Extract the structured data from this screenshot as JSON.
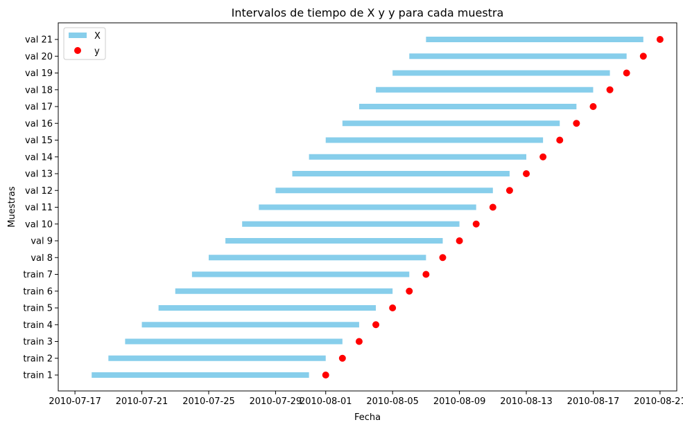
{
  "chart_data": {
    "type": "range-bar",
    "title": "Intervalos de tiempo de X y y para cada muestra",
    "xlabel": "Fecha",
    "ylabel": "Muestras",
    "x_ticks": [
      "2010-07-17",
      "2010-07-21",
      "2010-07-25",
      "2010-07-29",
      "2010-08-01",
      "2010-08-05",
      "2010-08-09",
      "2010-08-13",
      "2010-08-17",
      "2010-08-21"
    ],
    "x_range": [
      "2010-07-16",
      "2010-08-22"
    ],
    "legend_position": "top-left",
    "categories": [
      "train 1",
      "train 2",
      "train 3",
      "train 4",
      "train 5",
      "train 6",
      "train 7",
      "val 8",
      "val 9",
      "val 10",
      "val 11",
      "val 12",
      "val 13",
      "val 14",
      "val 15",
      "val 16",
      "val 17",
      "val 18",
      "val 19",
      "val 20",
      "val 21"
    ],
    "series": [
      {
        "name": "X",
        "kind": "interval",
        "color": "#87ceeb",
        "intervals": [
          [
            "2010-07-18",
            "2010-07-31"
          ],
          [
            "2010-07-19",
            "2010-08-01"
          ],
          [
            "2010-07-20",
            "2010-08-02"
          ],
          [
            "2010-07-21",
            "2010-08-03"
          ],
          [
            "2010-07-22",
            "2010-08-04"
          ],
          [
            "2010-07-23",
            "2010-08-05"
          ],
          [
            "2010-07-24",
            "2010-08-06"
          ],
          [
            "2010-07-25",
            "2010-08-07"
          ],
          [
            "2010-07-26",
            "2010-08-08"
          ],
          [
            "2010-07-27",
            "2010-08-09"
          ],
          [
            "2010-07-28",
            "2010-08-10"
          ],
          [
            "2010-07-29",
            "2010-08-11"
          ],
          [
            "2010-07-30",
            "2010-08-12"
          ],
          [
            "2010-07-31",
            "2010-08-13"
          ],
          [
            "2010-08-01",
            "2010-08-14"
          ],
          [
            "2010-08-02",
            "2010-08-15"
          ],
          [
            "2010-08-03",
            "2010-08-16"
          ],
          [
            "2010-08-04",
            "2010-08-17"
          ],
          [
            "2010-08-05",
            "2010-08-18"
          ],
          [
            "2010-08-06",
            "2010-08-19"
          ],
          [
            "2010-08-07",
            "2010-08-20"
          ]
        ]
      },
      {
        "name": "y",
        "kind": "point",
        "color": "#ff0000",
        "dates": [
          "2010-08-01",
          "2010-08-02",
          "2010-08-03",
          "2010-08-04",
          "2010-08-05",
          "2010-08-06",
          "2010-08-07",
          "2010-08-08",
          "2010-08-09",
          "2010-08-10",
          "2010-08-11",
          "2010-08-12",
          "2010-08-13",
          "2010-08-14",
          "2010-08-15",
          "2010-08-16",
          "2010-08-17",
          "2010-08-18",
          "2010-08-19",
          "2010-08-20",
          "2010-08-21"
        ]
      }
    ]
  }
}
